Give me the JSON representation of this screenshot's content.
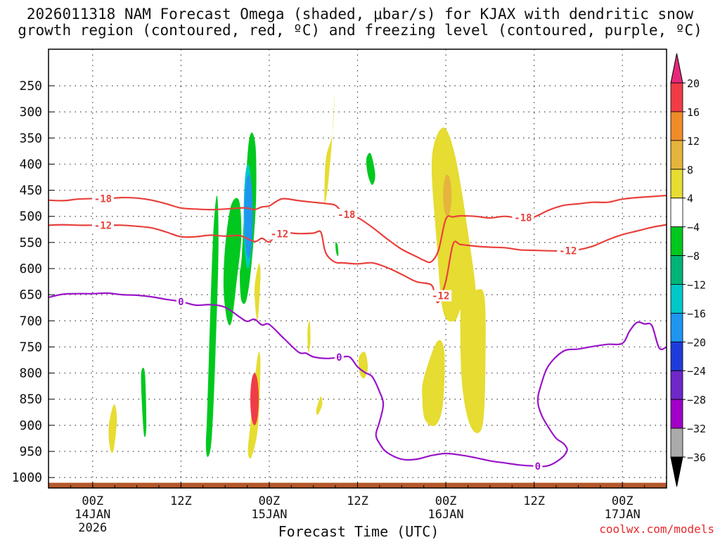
{
  "chart_data": {
    "type": "heatmap",
    "title_line1": "2026011318 NAM Forecast Omega (shaded, μbar/s) for KJAX with dendritic snow",
    "title_line2": "growth region (contoured, red, ºC) and freezing level (contoured, purple, ºC)",
    "xlabel": "Forecast Time (UTC)",
    "ylabel": "",
    "x_unit": "hours since 2026-01-13 18Z",
    "xlim": [
      0,
      84
    ],
    "y_axis": "pressure (hPa), decreasing upward",
    "ylim": [
      1020,
      180
    ],
    "y_ticks": [
      250,
      300,
      350,
      400,
      450,
      500,
      550,
      600,
      650,
      700,
      750,
      800,
      850,
      900,
      950,
      1000
    ],
    "x_ticks": [
      {
        "x": 6,
        "line1": "00Z",
        "line2": "14JAN",
        "line3": "2026"
      },
      {
        "x": 18,
        "line1": "12Z",
        "line2": "",
        "line3": ""
      },
      {
        "x": 30,
        "line1": "00Z",
        "line2": "15JAN",
        "line3": ""
      },
      {
        "x": 42,
        "line1": "12Z",
        "line2": "",
        "line3": ""
      },
      {
        "x": 54,
        "line1": "00Z",
        "line2": "16JAN",
        "line3": ""
      },
      {
        "x": 66,
        "line1": "12Z",
        "line2": "",
        "line3": ""
      },
      {
        "x": 78,
        "line1": "00Z",
        "line2": "17JAN",
        "line3": ""
      }
    ],
    "colorbar": {
      "labels": [
        "20",
        "16",
        "12",
        "8",
        "4",
        "−4",
        "−8",
        "−12",
        "−16",
        "−20",
        "−24",
        "−28",
        "−32",
        "−36"
      ],
      "bins": [
        {
          "lo": 16,
          "hi": 20,
          "color": "#f03c46"
        },
        {
          "lo": 12,
          "hi": 16,
          "color": "#f08c28"
        },
        {
          "lo": 8,
          "hi": 12,
          "color": "#e6b43c"
        },
        {
          "lo": 4,
          "hi": 8,
          "color": "#e6dc32"
        },
        {
          "lo": -4,
          "hi": 4,
          "color": "#ffffff"
        },
        {
          "lo": -8,
          "hi": -4,
          "color": "#00c81e"
        },
        {
          "lo": -12,
          "hi": -8,
          "color": "#00b478"
        },
        {
          "lo": -16,
          "hi": -12,
          "color": "#00c8c8"
        },
        {
          "lo": -20,
          "hi": -16,
          "color": "#1e96f0"
        },
        {
          "lo": -24,
          "hi": -20,
          "color": "#1e3cdc"
        },
        {
          "lo": -28,
          "hi": -24,
          "color": "#6e28c8"
        },
        {
          "lo": -32,
          "hi": -28,
          "color": "#a000c8"
        },
        {
          "lo": -36,
          "hi": -32,
          "color": "#aaaaaa"
        }
      ],
      "over_color": "#e6287a",
      "under_color": "#000000"
    },
    "omega_features": [
      {
        "polarity": "negative",
        "x": [
          26.3,
          27.2,
          28.1,
          28.2,
          27.6,
          26.9,
          26.2,
          26.0
        ],
        "p": [
          570,
          360,
          360,
          470,
          590,
          660,
          660,
          610
        ],
        "cores": [
          {
            "x": 27.1,
            "p": 400,
            "p2": 600,
            "color": "#00c8c8"
          },
          {
            "x": 27.2,
            "p": 420,
            "p2": 580,
            "color": "#1e96f0"
          }
        ]
      },
      {
        "polarity": "negative",
        "x": [
          21.6,
          22.3,
          22.9,
          23.1,
          22.7,
          22.2,
          21.7,
          21.4
        ],
        "p": [
          860,
          560,
          460,
          560,
          760,
          920,
          960,
          940
        ],
        "cores": []
      },
      {
        "polarity": "negative",
        "x": [
          24.0,
          24.8,
          25.9,
          26.2,
          25.6,
          24.9,
          24.3,
          23.8
        ],
        "p": [
          560,
          480,
          470,
          540,
          620,
          700,
          700,
          640
        ],
        "cores": []
      },
      {
        "polarity": "negative",
        "x": [
          12.6,
          13.1,
          13.3,
          13.0,
          12.7
        ],
        "p": [
          800,
          800,
          900,
          920,
          860
        ],
        "cores": []
      },
      {
        "polarity": "negative",
        "x": [
          43.2,
          43.8,
          44.4,
          44.0,
          43.4
        ],
        "p": [
          390,
          380,
          420,
          440,
          420
        ],
        "cores": []
      },
      {
        "polarity": "negative",
        "x": [
          39.0,
          39.3,
          39.4,
          39.1
        ],
        "p": [
          550,
          555,
          575,
          570
        ],
        "cores": []
      },
      {
        "polarity": "positive",
        "x": [
          37.7,
          38.6,
          38.9,
          38.5,
          37.9,
          37.5
        ],
        "p": [
          390,
          340,
          260,
          360,
          450,
          470
        ],
        "cores": []
      },
      {
        "polarity": "positive",
        "x": [
          52.1,
          53.6,
          55.2,
          56.9,
          58.1,
          56.3,
          55.2,
          53.6,
          52.7
        ],
        "p": [
          390,
          330,
          380,
          520,
          660,
          670,
          700,
          680,
          540
        ],
        "cores": [
          {
            "x": 54.2,
            "p": 420,
            "p2": 500,
            "color": "#e6b43c"
          }
        ]
      },
      {
        "polarity": "positive",
        "x": [
          56.2,
          57.8,
          59.2,
          59.4,
          59.0,
          57.3,
          56.1
        ],
        "p": [
          620,
          640,
          650,
          760,
          900,
          900,
          800
        ],
        "cores": []
      },
      {
        "polarity": "positive",
        "x": [
          51.0,
          52.8,
          53.8,
          53.6,
          52.6,
          51.2,
          50.8
        ],
        "p": [
          810,
          740,
          760,
          860,
          900,
          890,
          850
        ],
        "cores": []
      },
      {
        "polarity": "positive",
        "x": [
          27.5,
          28.4,
          28.8,
          28.5,
          27.6,
          27.1
        ],
        "p": [
          890,
          770,
          780,
          900,
          960,
          950
        ],
        "cores": [
          {
            "x": 28.0,
            "p": 800,
            "p2": 900,
            "color": "#f03c46"
          }
        ]
      },
      {
        "polarity": "positive",
        "x": [
          28.0,
          28.6,
          28.8,
          28.4
        ],
        "p": [
          640,
          590,
          620,
          700
        ],
        "cores": []
      },
      {
        "polarity": "positive",
        "x": [
          35.2,
          35.5,
          35.6,
          35.3
        ],
        "p": [
          720,
          700,
          740,
          760
        ],
        "cores": []
      },
      {
        "polarity": "positive",
        "x": [
          36.4,
          37.0,
          37.2,
          36.6
        ],
        "p": [
          870,
          845,
          860,
          880
        ],
        "cores": []
      },
      {
        "polarity": "positive",
        "x": [
          42.2,
          43.0,
          43.4,
          42.9,
          42.3
        ],
        "p": [
          770,
          760,
          790,
          810,
          800
        ],
        "cores": []
      },
      {
        "polarity": "positive",
        "x": [
          8.2,
          8.9,
          9.3,
          8.8,
          8.3
        ],
        "p": [
          900,
          860,
          890,
          950,
          940
        ],
        "cores": []
      }
    ],
    "contours": [
      {
        "name": "-18 isotherm",
        "color": "#e8403c",
        "label": "-18",
        "x": [
          0,
          2,
          4,
          6,
          8,
          10,
          12,
          14,
          16,
          18,
          20,
          22,
          24,
          26,
          27,
          28,
          29,
          30,
          31,
          32,
          34,
          36,
          38,
          39,
          40,
          41,
          42,
          44,
          46,
          48,
          50,
          51,
          52,
          53,
          54,
          55,
          56,
          58,
          60,
          62,
          64,
          66,
          68,
          70,
          72,
          74,
          76,
          78,
          80,
          82,
          84
        ],
        "p": [
          469,
          470,
          467,
          466,
          466,
          464,
          465,
          469,
          476,
          484,
          486,
          487,
          486,
          484,
          484,
          487,
          482,
          480,
          471,
          466,
          470,
          473,
          476,
          479,
          493,
          500,
          502,
          521,
          543,
          563,
          577,
          584,
          587,
          565,
          505,
          501,
          499,
          500,
          503,
          500,
          503,
          501,
          488,
          479,
          476,
          473,
          473,
          467,
          464,
          462,
          460
        ],
        "labels_at": [
          {
            "x": 7.4,
            "text": "-18"
          },
          {
            "x": 40.5,
            "text": "-18"
          },
          {
            "x": 64.5,
            "text": "-18"
          }
        ]
      },
      {
        "name": "-12 isotherm",
        "color": "#e8403c",
        "label": "-12",
        "x": [
          0,
          2,
          4,
          6,
          8,
          10,
          12,
          14,
          16,
          18,
          20,
          22,
          24,
          26,
          28,
          29,
          30,
          31,
          32,
          34,
          36,
          37,
          37.5,
          38,
          39,
          40,
          42,
          44,
          46,
          48,
          50,
          52,
          52.5,
          53,
          54,
          55,
          56,
          58,
          60,
          62,
          64,
          66,
          68,
          70,
          72,
          74,
          76,
          78,
          80,
          82,
          84
        ],
        "p": [
          517,
          516,
          517,
          517,
          517,
          517,
          519,
          522,
          530,
          539,
          539,
          536,
          538,
          537,
          548,
          542,
          549,
          535,
          531,
          533,
          532,
          530,
          562,
          577,
          588,
          589,
          591,
          589,
          598,
          611,
          625,
          631,
          651,
          664,
          624,
          553,
          554,
          557,
          559,
          560,
          564,
          565,
          566,
          566,
          564,
          557,
          545,
          535,
          528,
          521,
          516
        ],
        "labels_at": [
          {
            "x": 7.4,
            "text": "-12"
          },
          {
            "x": 31.4,
            "text": "-12"
          },
          {
            "x": 53.3,
            "text": "-12"
          },
          {
            "x": 70.6,
            "text": "-12"
          }
        ]
      },
      {
        "name": "0 isotherm (freezing level)",
        "color": "#9a14c8",
        "label": "0",
        "x": [
          0,
          2,
          4,
          6,
          8,
          10,
          12,
          14,
          16,
          18,
          20,
          22,
          24,
          26,
          27,
          28,
          29,
          30,
          32,
          34,
          35,
          36,
          38,
          40,
          41,
          42,
          43,
          44,
          45,
          45.5,
          45,
          44.5,
          45,
          46,
          48,
          50,
          52,
          54,
          56,
          58,
          60,
          62,
          64,
          66,
          67,
          68,
          69,
          70,
          70.5,
          70,
          69,
          68,
          67,
          66.5,
          67,
          68,
          70,
          72,
          74,
          76,
          78,
          79,
          80,
          81,
          82,
          83,
          84
        ],
        "p": [
          655,
          649,
          648,
          648,
          647,
          650,
          651,
          654,
          659,
          663,
          670,
          669,
          674,
          693,
          701,
          697,
          708,
          707,
          734,
          760,
          762,
          769,
          772,
          769,
          770,
          788,
          799,
          807,
          836,
          860,
          893,
          918,
          935,
          952,
          965,
          965,
          958,
          954,
          957,
          962,
          968,
          972,
          976,
          978,
          979,
          977,
          970,
          959,
          947,
          935,
          925,
          905,
          880,
          852,
          820,
          785,
          758,
          754,
          749,
          745,
          743,
          719,
          703,
          706,
          709,
          752,
          750
        ],
        "labels_at": [
          {
            "x": 18.0,
            "text": "0"
          },
          {
            "x": 39.5,
            "text": "0"
          },
          {
            "x": 66.5,
            "text": "0"
          }
        ]
      }
    ],
    "terrain": {
      "color": "#b4582a",
      "top_p": 1010
    }
  },
  "credit": "coolwx.com/models"
}
